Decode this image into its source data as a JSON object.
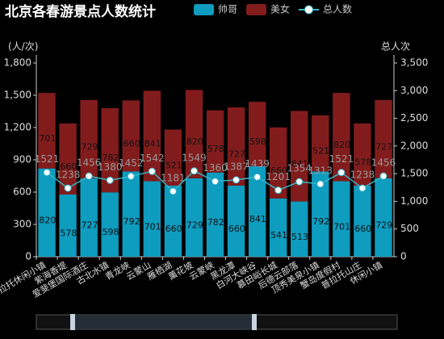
{
  "chart_data": {
    "type": "bar",
    "stacked": true,
    "title": "北京各春游景点人数统计",
    "ylabel": "(人/次)",
    "y2label": "总人次",
    "categories": [
      "普拉托休闲小镇",
      "紫海香堤",
      "爱斐堡国际酒庄",
      "古北水镇",
      "青龙峡",
      "云蒙山",
      "雁栖湖",
      "薰花坡",
      "云蒙峡",
      "黑龙潭",
      "白河大峡谷",
      "慕田峪长城",
      "后德云部落",
      "顶秀美泉小镇",
      "蟹岛度假村",
      "普拉托山庄",
      "休闲小镇"
    ],
    "series": [
      {
        "name": "帅哥",
        "color": "#0e9cbf",
        "values": [
          820,
          578,
          727,
          598,
          792,
          701,
          660,
          729,
          782,
          660,
          841,
          541,
          513,
          792,
          701,
          660,
          729
        ]
      },
      {
        "name": "美女",
        "color": "#821c1c",
        "values": [
          701,
          660,
          729,
          782,
          660,
          841,
          521,
          820,
          578,
          727,
          598,
          660,
          841,
          521,
          820,
          578,
          727
        ]
      },
      {
        "name": "总人数",
        "type": "line",
        "axis": "y2",
        "color": "#38b6c9",
        "values": [
          1521,
          1238,
          1456,
          1380,
          1452,
          1542,
          1181,
          1549,
          1360,
          1387,
          1439,
          1201,
          1354,
          1313,
          1521,
          1238,
          1456
        ]
      }
    ],
    "ylim": [
      0,
      1800
    ],
    "yticks": [
      0,
      300,
      600,
      900,
      {
        "value": 1200,
        "label": "1,200"
      },
      {
        "value": 1500,
        "label": "1,500"
      },
      {
        "value": 1800,
        "label": "1,800"
      }
    ],
    "y2lim": [
      0,
      3500
    ],
    "y2ticks": [
      0,
      500,
      {
        "value": 1000,
        "label": "1,000"
      },
      {
        "value": 1500,
        "label": "1,500"
      },
      {
        "value": 2000,
        "label": "2,000"
      },
      {
        "value": 2500,
        "label": "2,500"
      },
      {
        "value": 3000,
        "label": "3,000"
      },
      {
        "value": 3500,
        "label": "3,500"
      }
    ]
  }
}
